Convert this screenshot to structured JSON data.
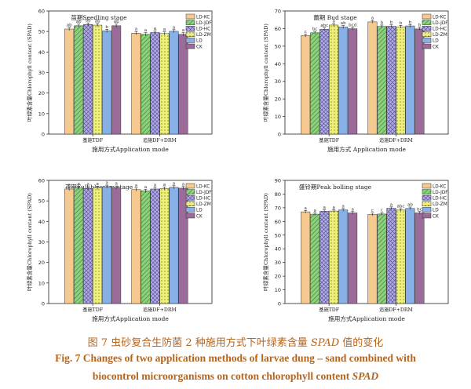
{
  "series_styles": [
    {
      "name": "LD-KC",
      "fill": "#f6c98f",
      "pattern": "none"
    },
    {
      "name": "LD-JDF",
      "fill": "#8fd07e",
      "pattern": "diag"
    },
    {
      "name": "LD-HC",
      "fill": "#b3aee0",
      "pattern": "cross"
    },
    {
      "name": "LD-ZM",
      "fill": "#eef07a",
      "pattern": "dots"
    },
    {
      "name": "LD",
      "fill": "#86b0e6",
      "pattern": "none"
    },
    {
      "name": "CK",
      "fill": "#9b6b9a",
      "pattern": "none"
    }
  ],
  "chart_data": [
    {
      "type": "bar",
      "title": "苗期Seedling stage",
      "ylabel": "叶绿素含量Chlorophyll content (SPAD)",
      "xlabel": "施用方式Application mode",
      "categories": [
        "基施TDF",
        "追施DF+DRM"
      ],
      "ylim": [
        0,
        60
      ],
      "yticks": [
        0,
        10,
        20,
        30,
        40,
        50,
        60
      ],
      "series": [
        {
          "name": "LD-KC",
          "values": [
            51.2,
            49.2
          ],
          "errors": [
            0.8,
            0.8
          ],
          "labels": [
            "ab",
            "a"
          ]
        },
        {
          "name": "LD-JDF",
          "values": [
            52.8,
            48.6
          ],
          "errors": [
            0.8,
            0.8
          ],
          "labels": [
            "ab",
            "a"
          ]
        },
        {
          "name": "LD-HC",
          "values": [
            53.4,
            49.5
          ],
          "errors": [
            0.8,
            0.8
          ],
          "labels": [
            "ab",
            "a"
          ]
        },
        {
          "name": "LD-ZM",
          "values": [
            53.1,
            49.0
          ],
          "errors": [
            0.8,
            0.8
          ],
          "labels": [
            "ab",
            "a"
          ]
        },
        {
          "name": "LD",
          "values": [
            50.3,
            50.1
          ],
          "errors": [
            0.8,
            0.8
          ],
          "labels": [
            "b",
            "a"
          ]
        },
        {
          "name": "CK",
          "values": [
            52.8,
            48.6
          ],
          "errors": [
            0.8,
            0.8
          ],
          "labels": [
            "ab",
            "a"
          ]
        }
      ]
    },
    {
      "type": "bar",
      "title": "蕾期 Bud stage",
      "ylabel": "叶绿素含量Chlorophyll content (SPAD)",
      "xlabel": "施用方式 Application mode",
      "categories": [
        "基施TDF",
        "追施DF+DRM"
      ],
      "ylim": [
        0,
        70
      ],
      "yticks": [
        0,
        10,
        20,
        30,
        40,
        50,
        60,
        70
      ],
      "series": [
        {
          "name": "LD-KC",
          "values": [
            56.0,
            63.8
          ],
          "errors": [
            0.8,
            0.8
          ],
          "labels": [
            "c",
            "a"
          ]
        },
        {
          "name": "LD-JDF",
          "values": [
            57.6,
            61.2
          ],
          "errors": [
            0.8,
            0.8
          ],
          "labels": [
            "bc",
            "b"
          ]
        },
        {
          "name": "LD-HC",
          "values": [
            59.6,
            61.3
          ],
          "errors": [
            0.8,
            0.8
          ],
          "labels": [
            "abc",
            "b"
          ]
        },
        {
          "name": "LD-ZM",
          "values": [
            62.0,
            61.0
          ],
          "errors": [
            0.8,
            0.8
          ],
          "labels": [
            "a",
            "b"
          ]
        },
        {
          "name": "LD",
          "values": [
            60.9,
            61.5
          ],
          "errors": [
            0.8,
            0.8
          ],
          "labels": [
            "ab",
            "b"
          ]
        },
        {
          "name": "CK",
          "values": [
            59.9,
            59.8
          ],
          "errors": [
            0.8,
            0.8
          ],
          "labels": [
            "bcd",
            "b"
          ]
        }
      ]
    },
    {
      "type": "bar",
      "title": "花期Full-blossom stage",
      "ylabel": "叶绿素含量Chlorophyll content (SPAD)",
      "xlabel": "施用方式Application mode",
      "categories": [
        "基施TDF",
        "追施DF+DRM"
      ],
      "ylim": [
        0,
        60
      ],
      "yticks": [
        0,
        10,
        20,
        30,
        40,
        50,
        60
      ],
      "series": [
        {
          "name": "LD-KC",
          "values": [
            55.8,
            55.5
          ],
          "errors": [
            0.8,
            0.8
          ],
          "labels": [
            "a",
            "a"
          ]
        },
        {
          "name": "LD-JDF",
          "values": [
            56.3,
            54.9
          ],
          "errors": [
            0.8,
            0.8
          ],
          "labels": [
            "a",
            "a"
          ]
        },
        {
          "name": "LD-HC",
          "values": [
            56.1,
            55.8
          ],
          "errors": [
            0.8,
            0.8
          ],
          "labels": [
            "a",
            "a"
          ]
        },
        {
          "name": "LD-ZM",
          "values": [
            56.4,
            56.0
          ],
          "errors": [
            0.8,
            0.8
          ],
          "labels": [
            "a",
            "a"
          ]
        },
        {
          "name": "LD",
          "values": [
            56.9,
            56.6
          ],
          "errors": [
            0.8,
            0.8
          ],
          "labels": [
            "a",
            "a"
          ]
        },
        {
          "name": "CK",
          "values": [
            56.5,
            56.2
          ],
          "errors": [
            0.8,
            0.8
          ],
          "labels": [
            "a",
            "a"
          ]
        }
      ]
    },
    {
      "type": "bar",
      "title": "盛铃期Peak bolling stage",
      "ylabel": "叶绿素含量Chlorophyll content (SPAD)",
      "xlabel": "施用方式Application mode",
      "categories": [
        "基施TDF",
        "追施DF+DRM"
      ],
      "ylim": [
        0,
        90
      ],
      "yticks": [
        0,
        10,
        20,
        30,
        40,
        50,
        60,
        70,
        80,
        90
      ],
      "series": [
        {
          "name": "LD-KC",
          "values": [
            67.0,
            65.1
          ],
          "errors": [
            1.0,
            1.0
          ],
          "labels": [
            "a",
            "c"
          ]
        },
        {
          "name": "LD-JDF",
          "values": [
            65.3,
            65.4
          ],
          "errors": [
            1.0,
            1.0
          ],
          "labels": [
            "a",
            "c"
          ]
        },
        {
          "name": "LD-HC",
          "values": [
            67.4,
            69.6
          ],
          "errors": [
            1.0,
            1.0
          ],
          "labels": [
            "a",
            "a"
          ]
        },
        {
          "name": "LD-ZM",
          "values": [
            67.6,
            68.3
          ],
          "errors": [
            1.0,
            1.0
          ],
          "labels": [
            "a",
            "abc"
          ]
        },
        {
          "name": "LD",
          "values": [
            68.4,
            69.5
          ],
          "errors": [
            1.0,
            1.0
          ],
          "labels": [
            "a",
            "ab"
          ]
        },
        {
          "name": "CK",
          "values": [
            66.2,
            66.2
          ],
          "errors": [
            1.0,
            1.0
          ],
          "labels": [
            "a",
            "bc"
          ]
        }
      ]
    }
  ],
  "caption": {
    "cn_a": "图 7    虫砂复合生防菌 2 种施用方式下叶绿素含量 ",
    "cn_b": "SPAD",
    "cn_c": " 值的变化",
    "en1": "Fig. 7    Changes of two application methods of larvae dung – sand combined with",
    "en2_a": "biocontrol microorganisms on cotton chlorophyll content ",
    "en2_b": "SPAD"
  }
}
